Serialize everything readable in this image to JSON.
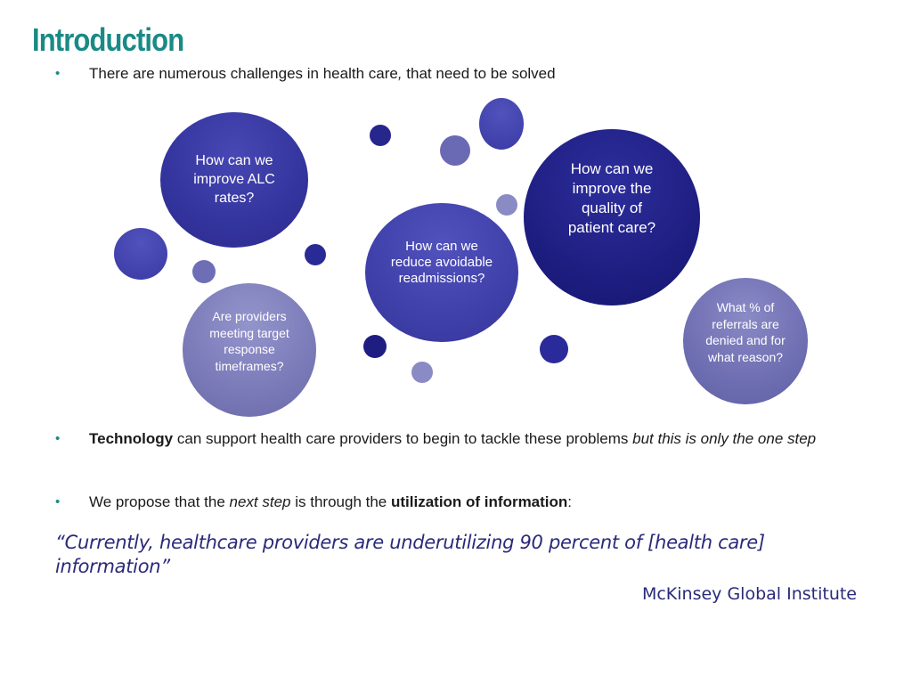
{
  "slide": {
    "title": "Introduction",
    "bullets": [
      {
        "segments": [
          {
            "text": "There are numerous challenges in health care",
            "style": "normal"
          },
          {
            "text": ",",
            "style": "italic"
          },
          {
            "text": " that need to be solved",
            "style": "normal"
          }
        ]
      },
      {
        "segments": [
          {
            "text": "Technology",
            "style": "bold"
          },
          {
            "text": " can support health care providers to begin to tackle these problems ",
            "style": "normal"
          },
          {
            "text": "but this is only the one step",
            "style": "italic"
          }
        ]
      },
      {
        "segments": [
          {
            "text": "We propose that the ",
            "style": "normal"
          },
          {
            "text": "next step",
            "style": "italic"
          },
          {
            "text": " is through the ",
            "style": "normal"
          },
          {
            "text": "utilization of information",
            "style": "bold"
          },
          {
            "text": ":",
            "style": "normal"
          }
        ]
      }
    ],
    "bubbles": {
      "alc": "How can we improve ALC rates?",
      "quality": "How can we improve the quality of patient care?",
      "readmissions": "How can we reduce avoidable readmissions?",
      "providers": "Are providers meeting target response timeframes?",
      "referrals": "What % of referrals are denied and for what reason?"
    },
    "quote": "“Currently, healthcare providers are underutilizing 90 percent of [health care] information”",
    "attribution": "McKinsey Global Institute"
  },
  "colors": {
    "title": "#1a8a86",
    "bullet_marker": "#1a8a86",
    "quote": "#2a2a7a",
    "bubble_dark": "#1e1e82",
    "bubble_medium": "#4040aa",
    "bubble_light": "#7a7ab8"
  }
}
